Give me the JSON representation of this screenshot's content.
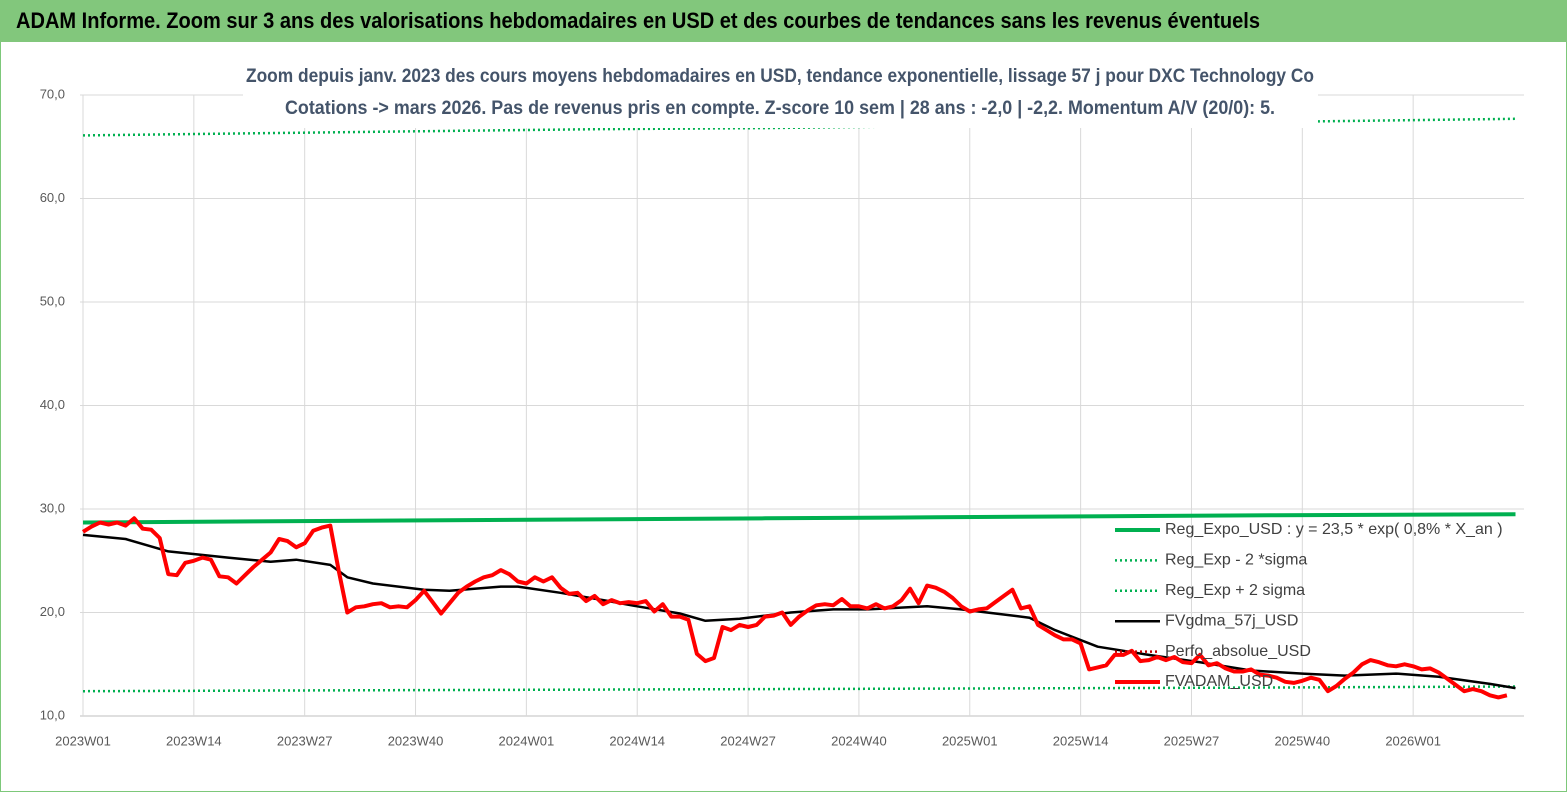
{
  "header": {
    "title": "ADAM Informe. Zoom sur 3 ans des valorisations hebdomadaires en USD et des courbes de tendances sans les revenus éventuels"
  },
  "chart_data": {
    "type": "line",
    "title": "Zoom depuis janv. 2023 des cours moyens hebdomadaires en USD, tendance exponentielle, lissage 57 j pour DXC Technology Co",
    "subtitle": "Cotations -> mars 2026. Pas de revenus pris en  compte. Z-score 10 sem  | 28 ans : -2,0 | -2,2. Momentum A/V (20/0): 5.",
    "xlim": [
      0,
      169
    ],
    "xticks": [
      {
        "value": 0,
        "label": "2023W01"
      },
      {
        "value": 13,
        "label": "2023W14"
      },
      {
        "value": 26,
        "label": "2023W27"
      },
      {
        "value": 39,
        "label": "2023W40"
      },
      {
        "value": 52,
        "label": "2024W01"
      },
      {
        "value": 65,
        "label": "2024W14"
      },
      {
        "value": 78,
        "label": "2024W27"
      },
      {
        "value": 91,
        "label": "2024W40"
      },
      {
        "value": 104,
        "label": "2025W01"
      },
      {
        "value": 117,
        "label": "2025W14"
      },
      {
        "value": 130,
        "label": "2025W27"
      },
      {
        "value": 143,
        "label": "2025W40"
      },
      {
        "value": 156,
        "label": "2026W01"
      }
    ],
    "ylim": [
      10,
      70
    ],
    "yticks": [
      {
        "value": 10,
        "label": "10,0"
      },
      {
        "value": 20,
        "label": "20,0"
      },
      {
        "value": 30,
        "label": "30,0"
      },
      {
        "value": 40,
        "label": "40,0"
      },
      {
        "value": 50,
        "label": "50,0"
      },
      {
        "value": 60,
        "label": "60,0"
      },
      {
        "value": 70,
        "label": "70,0"
      }
    ],
    "grid": true,
    "legend": "lower right",
    "series": [
      {
        "name": "Reg_Expo_USD : y = 23,5 * exp( 0,8% *  X_an )",
        "color": "#00b050",
        "style": "thick",
        "x": [
          0,
          20,
          40,
          60,
          80,
          100,
          120,
          140,
          168
        ],
        "values": [
          28.7,
          28.8,
          28.9,
          29.0,
          29.1,
          29.2,
          29.3,
          29.4,
          29.5
        ]
      },
      {
        "name": "Reg_Exp - 2 *sigma",
        "color": "#00b050",
        "style": "dotted",
        "x": [
          0,
          20,
          40,
          60,
          80,
          100,
          120,
          140,
          168
        ],
        "values": [
          12.4,
          12.45,
          12.5,
          12.55,
          12.6,
          12.65,
          12.7,
          12.75,
          12.85
        ]
      },
      {
        "name": "Reg_Exp + 2 sigma",
        "color": "#00b050",
        "style": "dotted",
        "x": [
          0,
          20,
          40,
          60,
          80,
          100,
          120,
          140,
          168
        ],
        "values": [
          66.1,
          66.3,
          66.5,
          66.7,
          66.8,
          67.0,
          67.2,
          67.4,
          67.7
        ]
      },
      {
        "name": "FVgdma_57j_USD",
        "color": "#000000",
        "style": "solid",
        "x": [
          0,
          5,
          10,
          17,
          22,
          25,
          29,
          31,
          34,
          40,
          43,
          49,
          51,
          56,
          61,
          65,
          70,
          73,
          77,
          83,
          88,
          92,
          99,
          103,
          107,
          111,
          114,
          119,
          125,
          131,
          137,
          143,
          148,
          154,
          159,
          165,
          168
        ],
        "values": [
          27.5,
          27.1,
          25.9,
          25.3,
          24.9,
          25.1,
          24.6,
          23.4,
          22.8,
          22.2,
          22.1,
          22.5,
          22.5,
          21.9,
          21.2,
          20.6,
          19.9,
          19.2,
          19.4,
          20.0,
          20.3,
          20.3,
          20.6,
          20.3,
          19.9,
          19.5,
          18.3,
          16.7,
          15.9,
          15.2,
          14.4,
          14.1,
          13.9,
          14.1,
          13.8,
          13.1,
          12.7
        ]
      },
      {
        "name": "Perfo_absolue_USD",
        "color": "#c00000",
        "style": "dotted",
        "x": [],
        "values": []
      },
      {
        "name": "FVADAM_USD",
        "color": "#ff0000",
        "style": "thick",
        "x": [
          0,
          1,
          2,
          3,
          4,
          5,
          6,
          7,
          8,
          9,
          10,
          11,
          12,
          13,
          14,
          15,
          16,
          17,
          18,
          19,
          20,
          21,
          22,
          23,
          24,
          25,
          26,
          27,
          28,
          29,
          30,
          31,
          32,
          33,
          34,
          35,
          36,
          37,
          38,
          39,
          40,
          41,
          42,
          43,
          44,
          45,
          46,
          47,
          48,
          49,
          50,
          51,
          52,
          53,
          54,
          55,
          56,
          57,
          58,
          59,
          60,
          61,
          62,
          63,
          64,
          65,
          66,
          67,
          68,
          69,
          70,
          71,
          72,
          73,
          74,
          75,
          76,
          77,
          78,
          79,
          80,
          81,
          82,
          83,
          84,
          85,
          86,
          87,
          88,
          89,
          90,
          91,
          92,
          93,
          94,
          95,
          96,
          97,
          98,
          99,
          100,
          101,
          102,
          103,
          104,
          105,
          106,
          107,
          108,
          109,
          110,
          111,
          112,
          113,
          114,
          115,
          116,
          117,
          118,
          119,
          120,
          121,
          122,
          123,
          124,
          125,
          126,
          127,
          128,
          129,
          130,
          131,
          132,
          133,
          134,
          135,
          136,
          137,
          138,
          139,
          140,
          141,
          142,
          143,
          144,
          145,
          146,
          147,
          148,
          149,
          150,
          151,
          152,
          153,
          154,
          155,
          156,
          157,
          158,
          159,
          160,
          161,
          162,
          163,
          164,
          165,
          166,
          167
        ],
        "values": [
          27.8,
          28.3,
          28.7,
          28.5,
          28.7,
          28.4,
          29.1,
          28.1,
          28.0,
          27.2,
          23.7,
          23.6,
          24.8,
          25.0,
          25.3,
          25.1,
          23.5,
          23.4,
          22.8,
          23.6,
          24.4,
          25.1,
          25.8,
          27.1,
          26.9,
          26.3,
          26.7,
          27.9,
          28.2,
          28.4,
          24.0,
          20.0,
          20.5,
          20.6,
          20.8,
          20.9,
          20.5,
          20.6,
          20.5,
          21.2,
          22.1,
          21.0,
          19.9,
          20.9,
          21.9,
          22.5,
          23.0,
          23.4,
          23.6,
          24.1,
          23.7,
          23.0,
          22.8,
          23.4,
          23.0,
          23.4,
          22.4,
          21.8,
          21.9,
          21.1,
          21.6,
          20.8,
          21.2,
          20.9,
          21.0,
          20.9,
          21.1,
          20.1,
          20.8,
          19.6,
          19.6,
          19.3,
          16.0,
          15.3,
          15.6,
          18.6,
          18.3,
          18.8,
          18.6,
          18.8,
          19.6,
          19.7,
          20.0,
          18.8,
          19.6,
          20.2,
          20.7,
          20.8,
          20.7,
          21.3,
          20.6,
          20.6,
          20.4,
          20.8,
          20.4,
          20.6,
          21.2,
          22.3,
          20.9,
          22.6,
          22.4,
          22.0,
          21.4,
          20.6,
          20.1,
          20.3,
          20.4,
          21.0,
          21.6,
          22.2,
          20.4,
          20.6,
          18.8,
          18.3,
          17.8,
          17.4,
          17.4,
          17.0,
          14.5,
          14.7,
          14.9,
          15.9,
          15.9,
          16.3,
          15.3,
          15.4,
          15.7,
          15.4,
          15.7,
          15.2,
          15.1,
          15.9,
          14.9,
          15.1,
          14.6,
          14.3,
          14.3,
          14.5,
          14.0,
          13.9,
          13.7,
          13.3,
          13.2,
          13.4,
          13.7,
          13.5,
          12.4,
          12.9,
          13.6,
          14.2,
          15.0,
          15.4,
          15.2,
          14.9,
          14.8,
          15.0,
          14.8,
          14.5,
          14.6,
          14.2,
          13.6,
          13.0,
          12.4,
          12.6,
          12.4,
          12.0,
          11.8,
          12.0
        ]
      }
    ]
  }
}
